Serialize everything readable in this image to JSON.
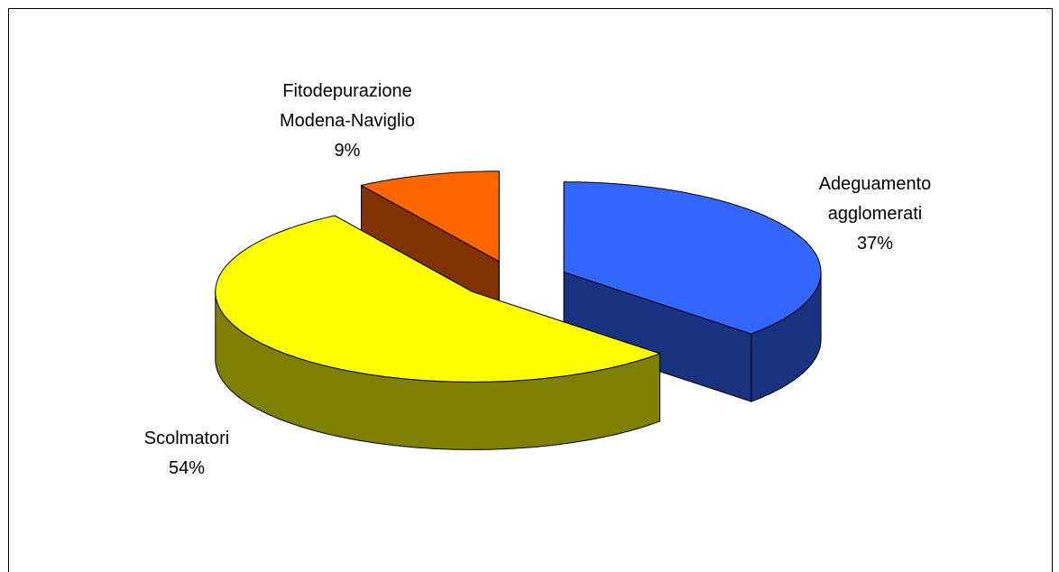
{
  "chart_data": {
    "type": "pie3d",
    "categories": [
      "Adeguamento agglomerati",
      "Scolmatori",
      "Fitodepurazione Modena-Naviglio"
    ],
    "values": [
      37,
      54,
      9
    ],
    "value_labels": [
      "37%",
      "54%",
      "9%"
    ],
    "colors": [
      "#3366ff",
      "#ffff00",
      "#ff6600"
    ]
  }
}
